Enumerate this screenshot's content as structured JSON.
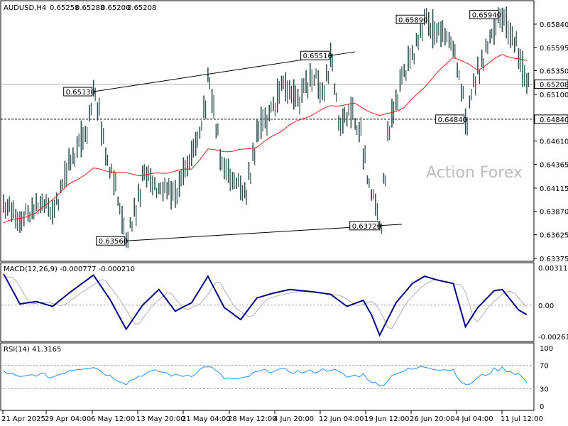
{
  "chart_data": {
    "type": "candlestick",
    "header": {
      "symbol_tf": "AUDUSD,H4",
      "ohlc": [
        "0.65258",
        "0.65288",
        "0.65200",
        "0.65208"
      ]
    },
    "watermark": "Action Forex",
    "price_axis": {
      "ylim": [
        0.6635,
        0.66
      ],
      "ticks": [
        "0.65840",
        "0.65595",
        "0.65350",
        "0.65100",
        "0.64855",
        "0.64610",
        "0.64365",
        "0.64115",
        "0.63870",
        "0.63625",
        "0.63375"
      ],
      "current_price": "0.65208",
      "support_line": "0.64840"
    },
    "x_ticks": [
      "21 Apr 2025",
      "29 Apr 04:00",
      "6 May 12:00",
      "13 May 20:00",
      "21 May 04:00",
      "28 May 12:00",
      "4 Jun 20:00",
      "12 Jun 04:00",
      "19 Jun 12:00",
      "26 Jun 20:00",
      "4 Jul 04:00",
      "11 Jul 12:00"
    ],
    "price_labels": [
      {
        "text": "0.65130",
        "idx": 22
      },
      {
        "text": "0.63560",
        "idx": 30
      },
      {
        "text": "0.65510",
        "idx": 80
      },
      {
        "text": "0.63720",
        "idx": 92
      },
      {
        "text": "0.65890",
        "idx": 103
      },
      {
        "text": "0.65940",
        "idx": 121
      },
      {
        "text": "0.64840",
        "idx": 113
      }
    ],
    "price_anchors": [
      [
        0,
        0.6393
      ],
      [
        4,
        0.6378
      ],
      [
        8,
        0.6395
      ],
      [
        12,
        0.6388
      ],
      [
        16,
        0.644
      ],
      [
        20,
        0.647
      ],
      [
        22,
        0.6513
      ],
      [
        25,
        0.6445
      ],
      [
        28,
        0.6398
      ],
      [
        30,
        0.6358
      ],
      [
        34,
        0.6425
      ],
      [
        38,
        0.641
      ],
      [
        42,
        0.6405
      ],
      [
        46,
        0.645
      ],
      [
        48,
        0.647
      ],
      [
        50,
        0.653
      ],
      [
        53,
        0.644
      ],
      [
        56,
        0.642
      ],
      [
        59,
        0.641
      ],
      [
        62,
        0.647
      ],
      [
        65,
        0.649
      ],
      [
        68,
        0.652
      ],
      [
        72,
        0.6505
      ],
      [
        75,
        0.653
      ],
      [
        78,
        0.6515
      ],
      [
        80,
        0.6551
      ],
      [
        82,
        0.648
      ],
      [
        85,
        0.649
      ],
      [
        87,
        0.647
      ],
      [
        89,
        0.642
      ],
      [
        91,
        0.639
      ],
      [
        92,
        0.6372
      ],
      [
        94,
        0.647
      ],
      [
        97,
        0.6525
      ],
      [
        100,
        0.6555
      ],
      [
        103,
        0.6589
      ],
      [
        105,
        0.658
      ],
      [
        108,
        0.657
      ],
      [
        110,
        0.656
      ],
      [
        113,
        0.6484
      ],
      [
        115,
        0.6525
      ],
      [
        118,
        0.656
      ],
      [
        121,
        0.6594
      ],
      [
        124,
        0.6575
      ],
      [
        126,
        0.655
      ],
      [
        128,
        0.6521
      ]
    ],
    "ma_anchors": [
      [
        0,
        0.6375
      ],
      [
        8,
        0.6385
      ],
      [
        16,
        0.6415
      ],
      [
        22,
        0.6432
      ],
      [
        28,
        0.6428
      ],
      [
        34,
        0.6425
      ],
      [
        40,
        0.6428
      ],
      [
        46,
        0.6432
      ],
      [
        50,
        0.6452
      ],
      [
        56,
        0.645
      ],
      [
        62,
        0.6455
      ],
      [
        70,
        0.6478
      ],
      [
        80,
        0.6498
      ],
      [
        86,
        0.65
      ],
      [
        92,
        0.6487
      ],
      [
        98,
        0.6496
      ],
      [
        104,
        0.6523
      ],
      [
        110,
        0.655
      ],
      [
        116,
        0.6536
      ],
      [
        122,
        0.6552
      ],
      [
        128,
        0.6545
      ]
    ],
    "macd": {
      "label": "MACD(12,26,9) -0.000777 -0.000210",
      "ticks": [
        "0.003117",
        "0.00",
        "-0.002611"
      ],
      "ylim": [
        -0.002611,
        0.003117
      ],
      "main_anchors": [
        [
          0,
          0.0026
        ],
        [
          4,
          0.0001
        ],
        [
          8,
          0.0003
        ],
        [
          12,
          -0.0001
        ],
        [
          16,
          0.001
        ],
        [
          20,
          0.002
        ],
        [
          22,
          0.0025
        ],
        [
          26,
          0.0005
        ],
        [
          30,
          -0.002
        ],
        [
          34,
          0.0
        ],
        [
          38,
          0.0013
        ],
        [
          42,
          -0.0005
        ],
        [
          46,
          0.0002
        ],
        [
          50,
          0.0024
        ],
        [
          54,
          -0.0002
        ],
        [
          58,
          -0.0012
        ],
        [
          62,
          0.0006
        ],
        [
          66,
          0.001
        ],
        [
          70,
          0.0013
        ],
        [
          76,
          0.0011
        ],
        [
          80,
          0.0009
        ],
        [
          84,
          -0.0001
        ],
        [
          88,
          0.0004
        ],
        [
          90,
          -0.0008
        ],
        [
          92,
          -0.0025
        ],
        [
          96,
          0.0002
        ],
        [
          100,
          0.0018
        ],
        [
          103,
          0.0024
        ],
        [
          106,
          0.0021
        ],
        [
          110,
          0.0018
        ],
        [
          113,
          -0.0018
        ],
        [
          116,
          -0.0002
        ],
        [
          120,
          0.0012
        ],
        [
          122,
          0.0013
        ],
        [
          126,
          -0.0004
        ],
        [
          128,
          -0.0008
        ]
      ]
    },
    "rsi": {
      "label": "RSI(14) 41.3165",
      "ticks": [
        "100",
        "70",
        "30",
        "0"
      ],
      "ylim": [
        0,
        100
      ],
      "anchors": [
        [
          0,
          60
        ],
        [
          4,
          48
        ],
        [
          8,
          55
        ],
        [
          12,
          50
        ],
        [
          16,
          62
        ],
        [
          20,
          67
        ],
        [
          22,
          68
        ],
        [
          26,
          52
        ],
        [
          30,
          40
        ],
        [
          34,
          55
        ],
        [
          38,
          60
        ],
        [
          42,
          52
        ],
        [
          46,
          54
        ],
        [
          50,
          70
        ],
        [
          54,
          48
        ],
        [
          58,
          45
        ],
        [
          62,
          58
        ],
        [
          66,
          62
        ],
        [
          70,
          60
        ],
        [
          74,
          58
        ],
        [
          78,
          62
        ],
        [
          80,
          64
        ],
        [
          84,
          50
        ],
        [
          88,
          54
        ],
        [
          92,
          33
        ],
        [
          96,
          58
        ],
        [
          100,
          63
        ],
        [
          103,
          68
        ],
        [
          106,
          65
        ],
        [
          110,
          62
        ],
        [
          113,
          34
        ],
        [
          116,
          48
        ],
        [
          120,
          62
        ],
        [
          122,
          65
        ],
        [
          126,
          55
        ],
        [
          128,
          41
        ]
      ]
    }
  }
}
